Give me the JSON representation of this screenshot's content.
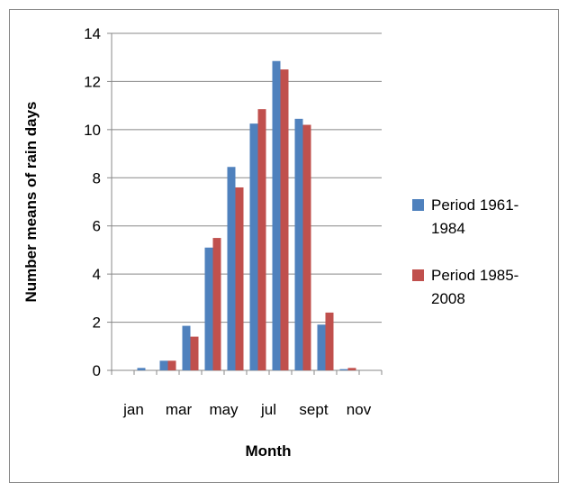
{
  "chart_data": {
    "type": "bar",
    "x_label": "Month",
    "y_label": "Number means of rain days",
    "categories": [
      "jan",
      null,
      "mar",
      null,
      "may",
      null,
      "jul",
      null,
      "sept",
      null,
      "nov",
      null
    ],
    "series": [
      {
        "name": "Period 1961-1984",
        "color": "#4f81bd",
        "values": [
          0,
          0.1,
          0.4,
          1.85,
          5.1,
          8.45,
          10.25,
          12.85,
          10.45,
          1.9,
          0.05,
          0
        ]
      },
      {
        "name": "Period 1985-2008",
        "color": "#c0504d",
        "values": [
          0,
          0,
          0.4,
          1.4,
          5.5,
          7.6,
          10.85,
          12.5,
          10.2,
          2.4,
          0.1,
          0
        ]
      }
    ],
    "ylim": [
      0,
      14
    ],
    "yticks": [
      0,
      2,
      4,
      6,
      8,
      10,
      12,
      14
    ],
    "grid": true
  }
}
